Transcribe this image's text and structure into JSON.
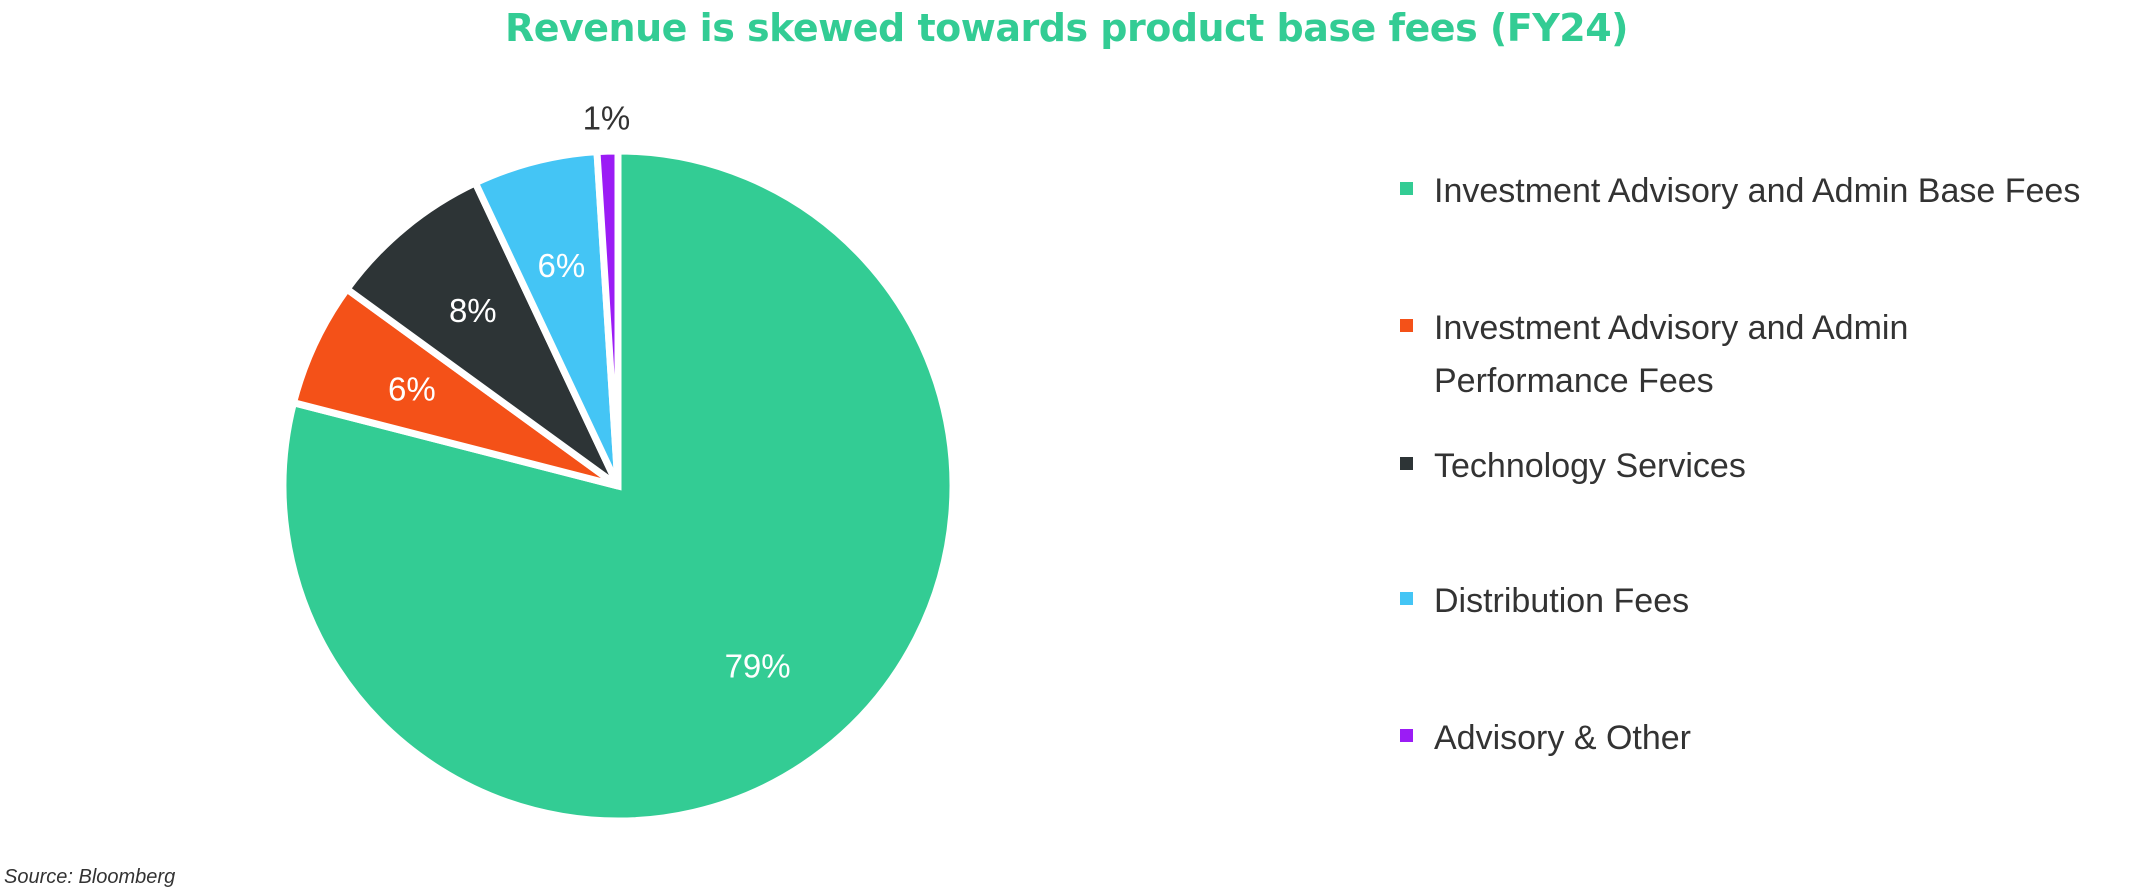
{
  "chart_data": {
    "type": "pie",
    "title": "Revenue is skewed towards product base fees (FY24)",
    "slices": [
      {
        "label": "Investment Advisory and Admin Base Fees",
        "value": 79,
        "data_label": "79%",
        "color": "#33cc94"
      },
      {
        "label": "Investment Advisory and Admin Performance Fees",
        "value": 6,
        "data_label": "6%",
        "color": "#f45118"
      },
      {
        "label": "Technology Services",
        "value": 8,
        "data_label": "8%",
        "color": "#2d3436"
      },
      {
        "label": "Distribution Fees",
        "value": 6,
        "data_label": "6%",
        "color": "#44c5f5"
      },
      {
        "label": "Advisory & Other",
        "value": 1,
        "data_label": "1%",
        "color": "#9b1cf5"
      }
    ],
    "legend_position": "right",
    "source": "Source: Bloomberg"
  },
  "colors": {
    "title": "#33cc94",
    "slice_border": "#ffffff",
    "data_label_inside": "#ffffff",
    "data_label_outside": "#333333"
  }
}
